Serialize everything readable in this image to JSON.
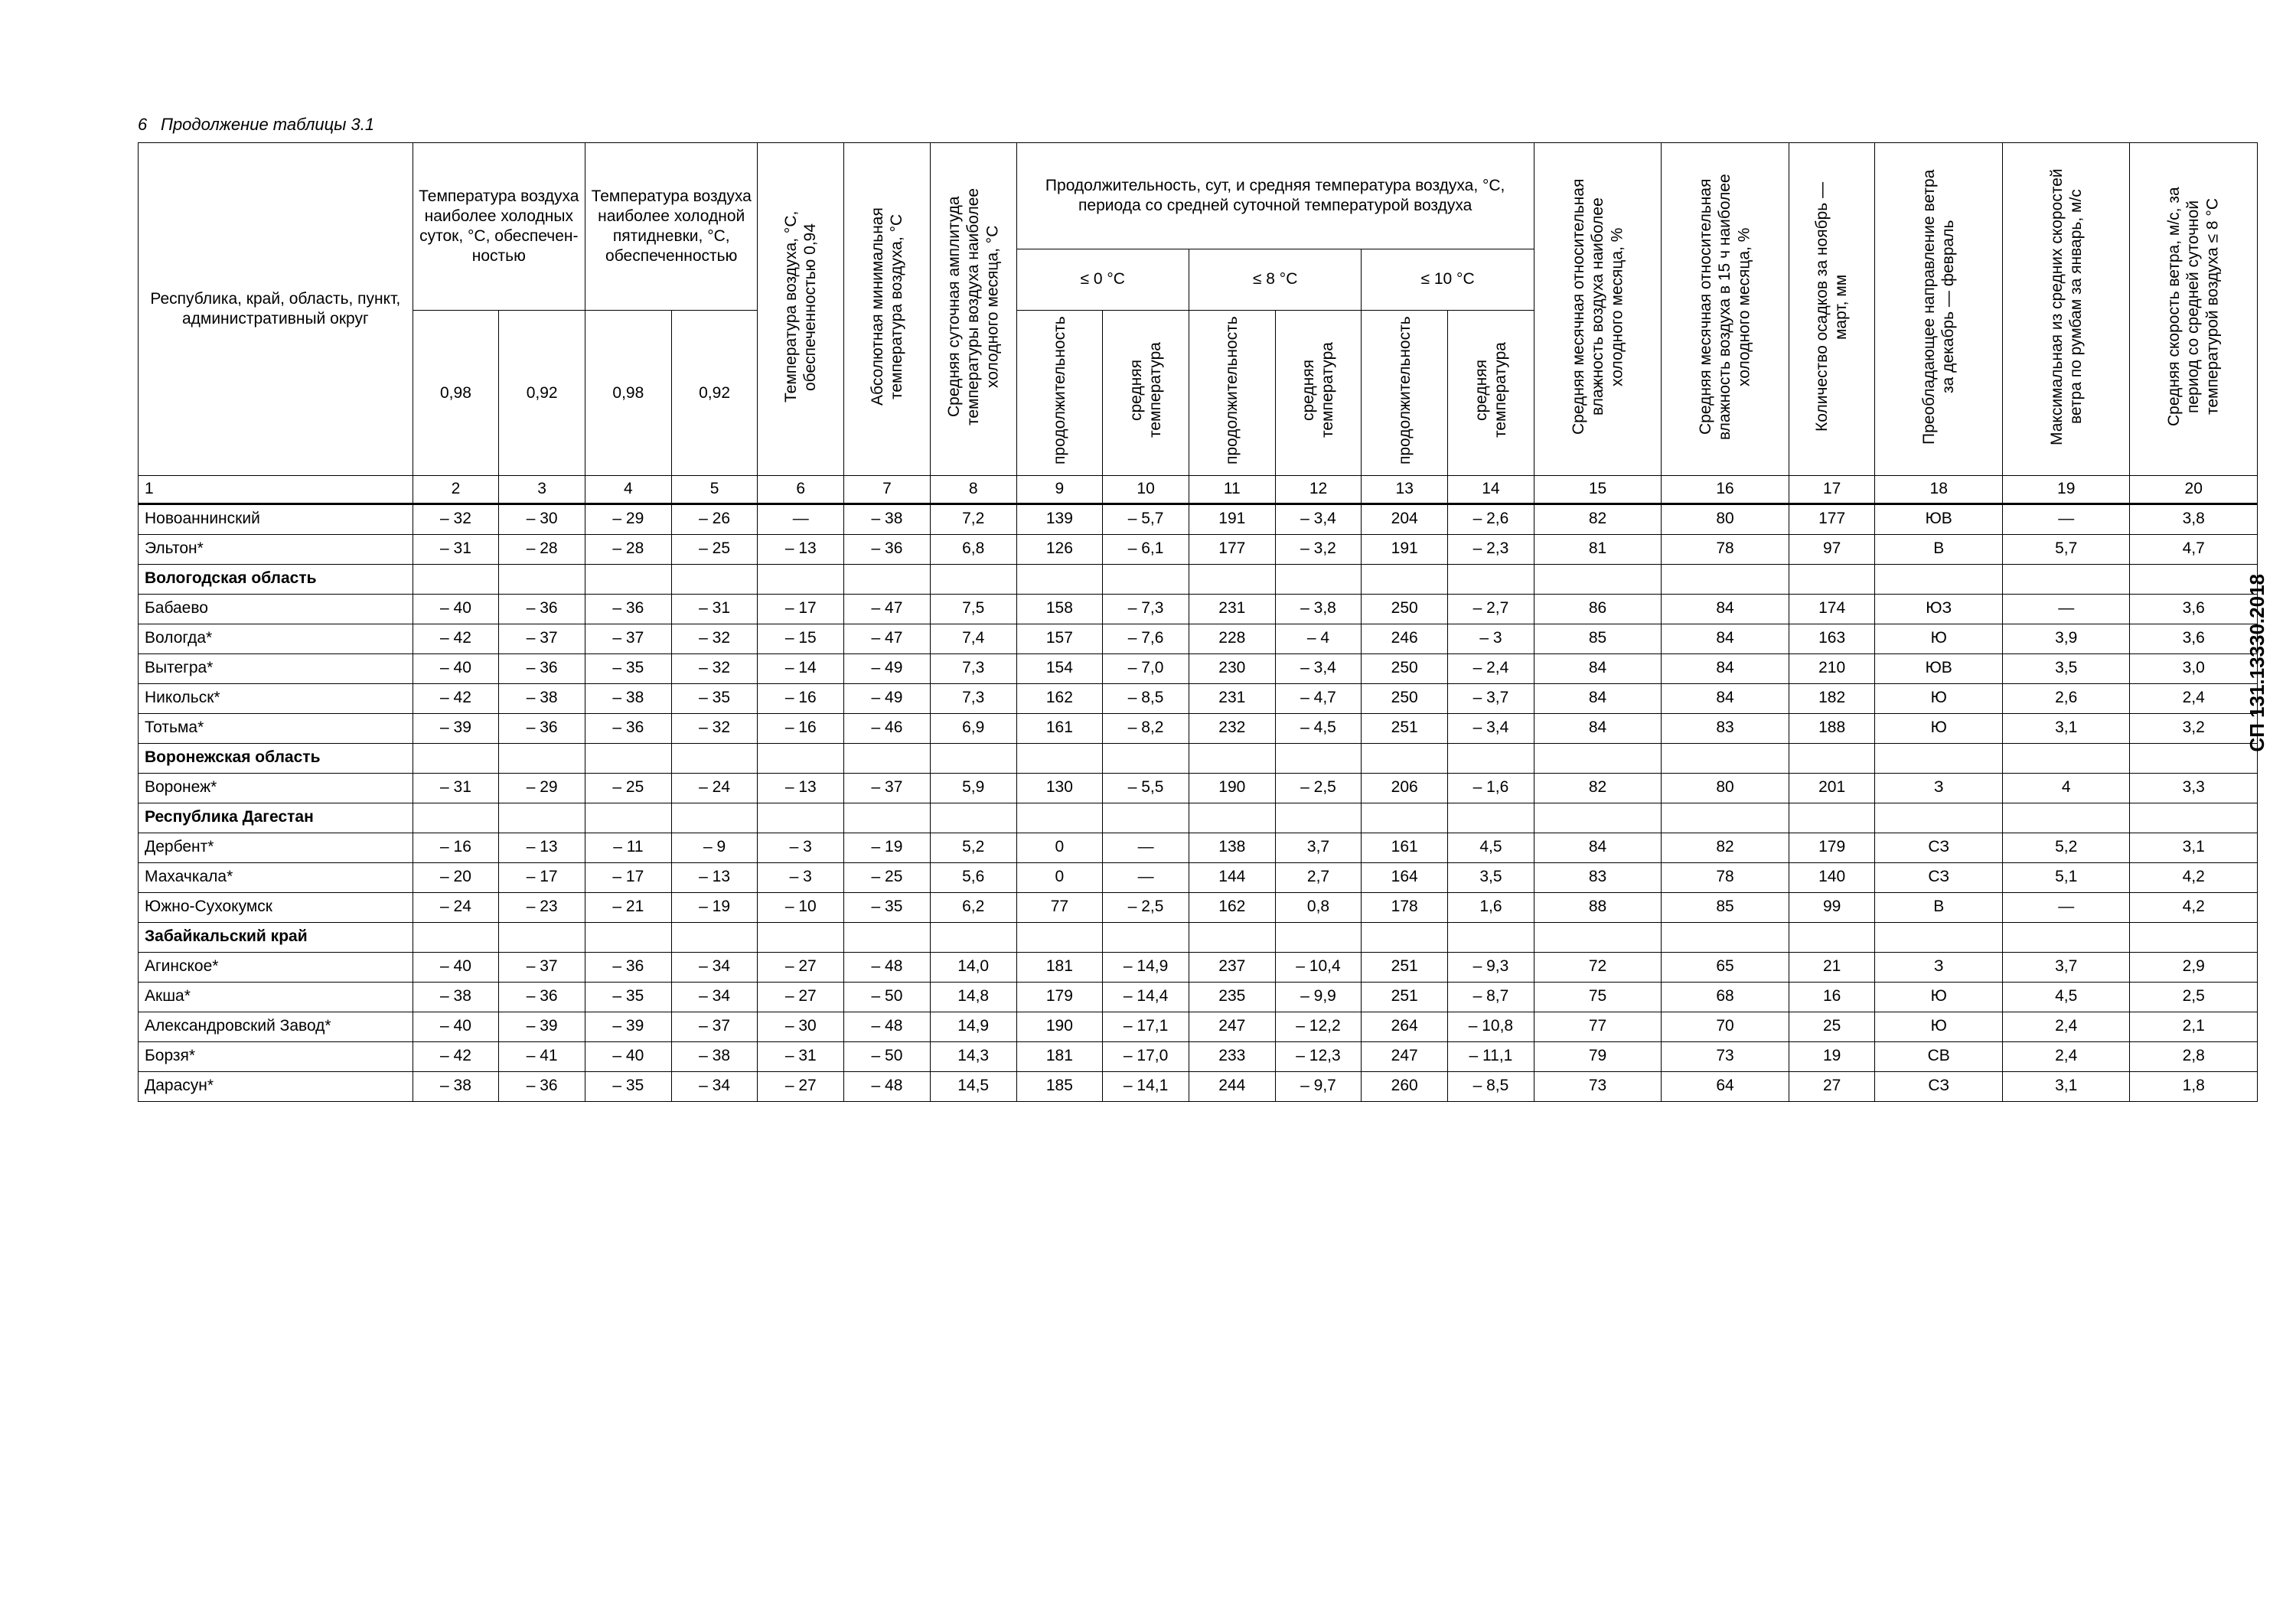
{
  "document": {
    "code": "СП 131.13330.2018",
    "page_number": "6",
    "continuation": "Продолжение таблицы 3.1"
  },
  "headers": {
    "h1": "Республика, край, область, пункт, административный округ",
    "h2_3_top": "Температу­ра воздуха наиболее холодных суток, °C, обеспечен­ностью",
    "h4_5_top": "Температу­ра воздуха наиболее холодной пятидневки, °C, обеспе­ченностью",
    "h2": "0,98",
    "h3": "0,92",
    "h4": "0,98",
    "h5": "0,92",
    "h6": "Температура воздуха, °C, обеспеченностью 0,94",
    "h7": "Абсолютная минимальная температура воздуха, °C",
    "h8": "Средняя суточная амплитуда температуры воздуха наиболее холодного месяца, °C",
    "h9_14_top": "Продолжительность, сут, и средняя температура воздуха, °C, периода со средней суточной температурой воздуха",
    "sub0": "≤ 0 °C",
    "sub8": "≤ 8 °C",
    "sub10": "≤ 10 °C",
    "dur": "продолжительность",
    "avg": "средняя температура",
    "h15": "Средняя месячная относительная влажность воздуха наиболее холодного месяца, %",
    "h16": "Средняя месячная относи­тельная влажность воздуха в 15 ч наиболее холодного месяца, %",
    "h17": "Количество осадков за ноябрь — март, мм",
    "h18": "Преобладающее направление ветра за декабрь — февраль",
    "h19": "Максимальная из средних скоростей ветра по румбам за январь, м/с",
    "h20": "Средняя скорость ветра, м/с, за период со средней суточной температурой воздуха ≤ 8 °C"
  },
  "colnums": [
    "1",
    "2",
    "3",
    "4",
    "5",
    "6",
    "7",
    "8",
    "9",
    "10",
    "11",
    "12",
    "13",
    "14",
    "15",
    "16",
    "17",
    "18",
    "19",
    "20"
  ],
  "rows": [
    {
      "type": "data",
      "cells": [
        "Новоаннинский",
        "– 32",
        "– 30",
        "– 29",
        "– 26",
        "—",
        "– 38",
        "7,2",
        "139",
        "– 5,7",
        "191",
        "– 3,4",
        "204",
        "– 2,6",
        "82",
        "80",
        "177",
        "ЮВ",
        "—",
        "3,8"
      ]
    },
    {
      "type": "data",
      "cells": [
        "Эльтон*",
        "– 31",
        "– 28",
        "– 28",
        "– 25",
        "– 13",
        "– 36",
        "6,8",
        "126",
        "– 6,1",
        "177",
        "– 3,2",
        "191",
        "– 2,3",
        "81",
        "78",
        "97",
        "В",
        "5,7",
        "4,7"
      ]
    },
    {
      "type": "section",
      "cells": [
        "Вологодская область",
        "",
        "",
        "",
        "",
        "",
        "",
        "",
        "",
        "",
        "",
        "",
        "",
        "",
        "",
        "",
        "",
        "",
        "",
        ""
      ]
    },
    {
      "type": "data",
      "cells": [
        "Бабаево",
        "– 40",
        "– 36",
        "– 36",
        "– 31",
        "– 17",
        "– 47",
        "7,5",
        "158",
        "– 7,3",
        "231",
        "– 3,8",
        "250",
        "– 2,7",
        "86",
        "84",
        "174",
        "ЮЗ",
        "—",
        "3,6"
      ]
    },
    {
      "type": "data",
      "cells": [
        "Вологда*",
        "– 42",
        "– 37",
        "– 37",
        "– 32",
        "– 15",
        "– 47",
        "7,4",
        "157",
        "– 7,6",
        "228",
        "– 4",
        "246",
        "– 3",
        "85",
        "84",
        "163",
        "Ю",
        "3,9",
        "3,6"
      ]
    },
    {
      "type": "data",
      "cells": [
        "Вытегра*",
        "– 40",
        "– 36",
        "– 35",
        "– 32",
        "– 14",
        "– 49",
        "7,3",
        "154",
        "– 7,0",
        "230",
        "– 3,4",
        "250",
        "– 2,4",
        "84",
        "84",
        "210",
        "ЮВ",
        "3,5",
        "3,0"
      ]
    },
    {
      "type": "data",
      "cells": [
        "Никольск*",
        "– 42",
        "– 38",
        "– 38",
        "– 35",
        "– 16",
        "– 49",
        "7,3",
        "162",
        "– 8,5",
        "231",
        "– 4,7",
        "250",
        "– 3,7",
        "84",
        "84",
        "182",
        "Ю",
        "2,6",
        "2,4"
      ]
    },
    {
      "type": "data",
      "cells": [
        "Тотьма*",
        "– 39",
        "– 36",
        "– 36",
        "– 32",
        "– 16",
        "– 46",
        "6,9",
        "161",
        "– 8,2",
        "232",
        "– 4,5",
        "251",
        "– 3,4",
        "84",
        "83",
        "188",
        "Ю",
        "3,1",
        "3,2"
      ]
    },
    {
      "type": "section",
      "cells": [
        "Воронежская область",
        "",
        "",
        "",
        "",
        "",
        "",
        "",
        "",
        "",
        "",
        "",
        "",
        "",
        "",
        "",
        "",
        "",
        "",
        ""
      ]
    },
    {
      "type": "data",
      "cells": [
        "Воронеж*",
        "– 31",
        "– 29",
        "– 25",
        "– 24",
        "– 13",
        "– 37",
        "5,9",
        "130",
        "– 5,5",
        "190",
        "– 2,5",
        "206",
        "– 1,6",
        "82",
        "80",
        "201",
        "З",
        "4",
        "3,3"
      ]
    },
    {
      "type": "section",
      "cells": [
        "Республика Дагестан",
        "",
        "",
        "",
        "",
        "",
        "",
        "",
        "",
        "",
        "",
        "",
        "",
        "",
        "",
        "",
        "",
        "",
        "",
        ""
      ]
    },
    {
      "type": "data",
      "cells": [
        "Дербент*",
        "– 16",
        "– 13",
        "– 11",
        "– 9",
        "– 3",
        "– 19",
        "5,2",
        "0",
        "—",
        "138",
        "3,7",
        "161",
        "4,5",
        "84",
        "82",
        "179",
        "СЗ",
        "5,2",
        "3,1"
      ]
    },
    {
      "type": "data",
      "cells": [
        "Махачкала*",
        "– 20",
        "– 17",
        "– 17",
        "– 13",
        "– 3",
        "– 25",
        "5,6",
        "0",
        "—",
        "144",
        "2,7",
        "164",
        "3,5",
        "83",
        "78",
        "140",
        "СЗ",
        "5,1",
        "4,2"
      ]
    },
    {
      "type": "data",
      "cells": [
        "Южно-Сухокумск",
        "– 24",
        "– 23",
        "– 21",
        "– 19",
        "– 10",
        "– 35",
        "6,2",
        "77",
        "– 2,5",
        "162",
        "0,8",
        "178",
        "1,6",
        "88",
        "85",
        "99",
        "В",
        "—",
        "4,2"
      ]
    },
    {
      "type": "section",
      "cells": [
        "Забайкальский край",
        "",
        "",
        "",
        "",
        "",
        "",
        "",
        "",
        "",
        "",
        "",
        "",
        "",
        "",
        "",
        "",
        "",
        "",
        ""
      ]
    },
    {
      "type": "data",
      "cells": [
        "Агинское*",
        "– 40",
        "– 37",
        "– 36",
        "– 34",
        "– 27",
        "– 48",
        "14,0",
        "181",
        "– 14,9",
        "237",
        "– 10,4",
        "251",
        "– 9,3",
        "72",
        "65",
        "21",
        "З",
        "3,7",
        "2,9"
      ]
    },
    {
      "type": "data",
      "cells": [
        "Акша*",
        "– 38",
        "– 36",
        "– 35",
        "– 34",
        "– 27",
        "– 50",
        "14,8",
        "179",
        "– 14,4",
        "235",
        "– 9,9",
        "251",
        "– 8,7",
        "75",
        "68",
        "16",
        "Ю",
        "4,5",
        "2,5"
      ]
    },
    {
      "type": "data",
      "cells": [
        "Александров­ский Завод*",
        "– 40",
        "– 39",
        "– 39",
        "– 37",
        "– 30",
        "– 48",
        "14,9",
        "190",
        "– 17,1",
        "247",
        "– 12,2",
        "264",
        "– 10,8",
        "77",
        "70",
        "25",
        "Ю",
        "2,4",
        "2,1"
      ]
    },
    {
      "type": "data",
      "cells": [
        "Борзя*",
        "– 42",
        "– 41",
        "– 40",
        "– 38",
        "– 31",
        "– 50",
        "14,3",
        "181",
        "– 17,0",
        "233",
        "– 12,3",
        "247",
        "– 11,1",
        "79",
        "73",
        "19",
        "СВ",
        "2,4",
        "2,8"
      ]
    },
    {
      "type": "data",
      "cells": [
        "Дарасун*",
        "– 38",
        "– 36",
        "– 35",
        "– 34",
        "– 27",
        "– 48",
        "14,5",
        "185",
        "– 14,1",
        "244",
        "– 9,7",
        "260",
        "– 8,5",
        "73",
        "64",
        "27",
        "СЗ",
        "3,1",
        "1,8"
      ]
    }
  ]
}
